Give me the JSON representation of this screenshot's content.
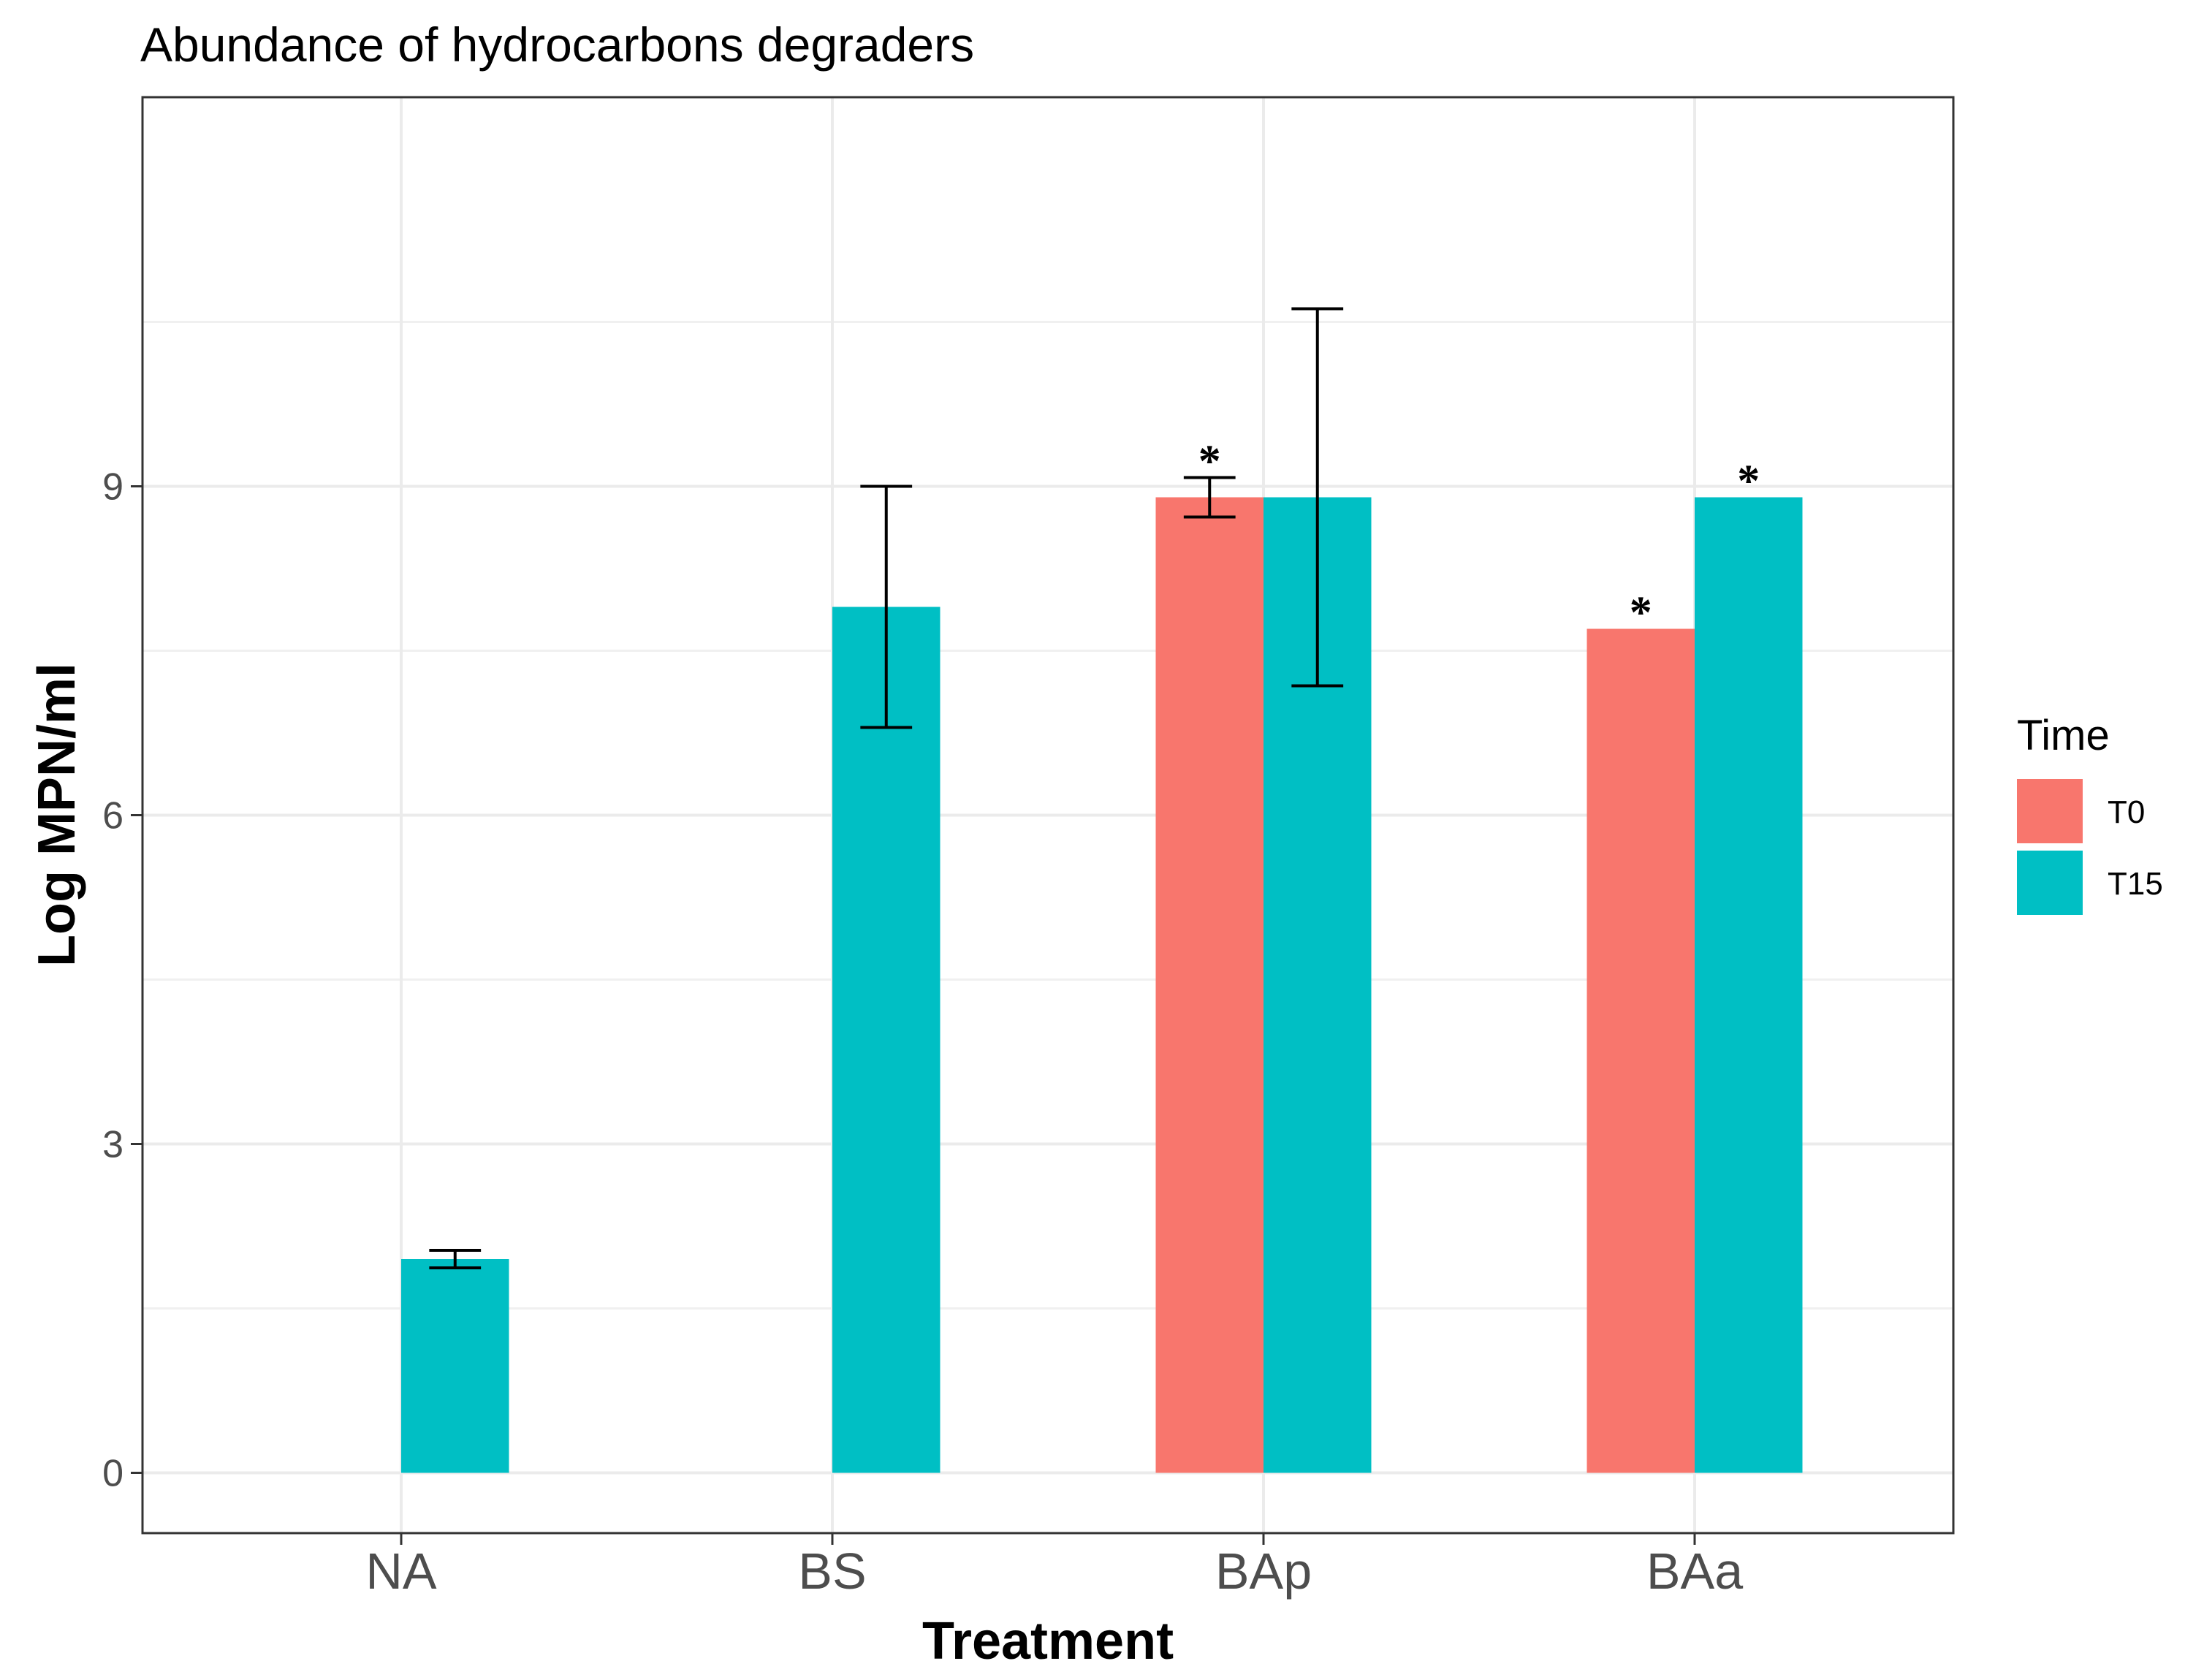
{
  "chart_data": {
    "type": "bar",
    "title": "Abundance of hydrocarbons degraders",
    "xlabel": "Treatment",
    "ylabel": "Log MPN/ml",
    "ylim": [
      -0.55,
      12.55
    ],
    "yticks": [
      0,
      3,
      6,
      9
    ],
    "categories": [
      "NA",
      "BS",
      "BAp",
      "BAa"
    ],
    "legend": {
      "title": "Time",
      "position": "right"
    },
    "series": [
      {
        "name": "T0",
        "color": "#F8766D",
        "values": [
          null,
          null,
          8.9,
          7.7
        ],
        "error_low": [
          null,
          null,
          8.72,
          null
        ],
        "error_high": [
          null,
          null,
          9.08,
          null
        ],
        "annotations": [
          null,
          null,
          "*",
          "*"
        ]
      },
      {
        "name": "T15",
        "color": "#00BFC4",
        "values": [
          1.95,
          7.9,
          8.9,
          8.9
        ],
        "error_low": [
          1.87,
          6.8,
          7.18,
          null
        ],
        "error_high": [
          2.03,
          9.0,
          10.62,
          null
        ],
        "annotations": [
          null,
          null,
          null,
          "*"
        ]
      }
    ],
    "grid": true
  }
}
